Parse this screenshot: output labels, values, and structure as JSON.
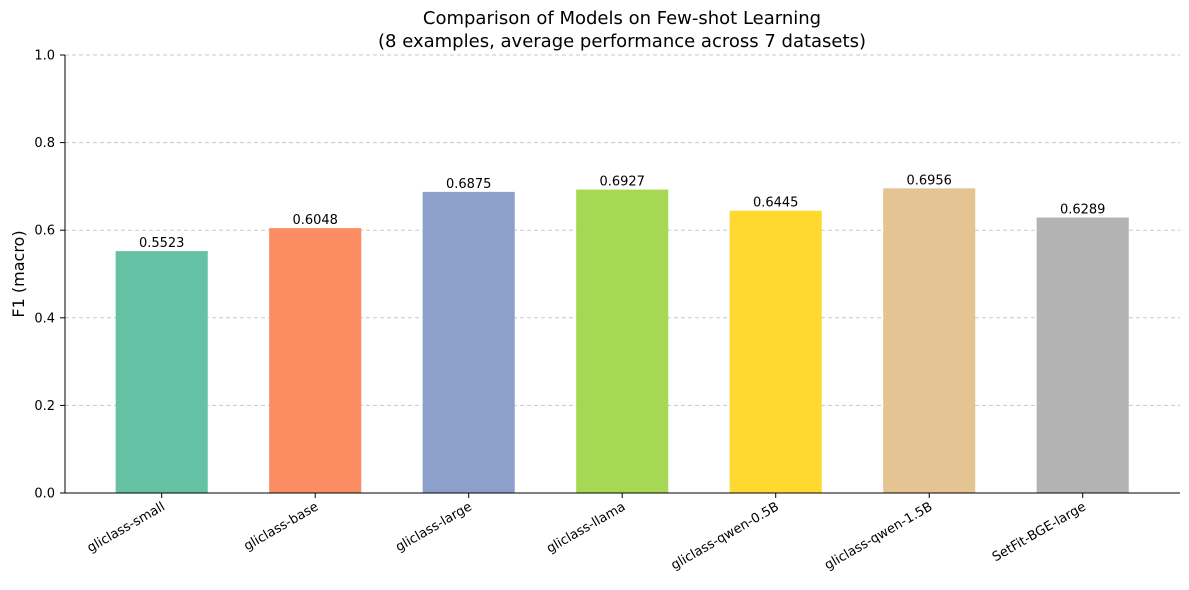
{
  "chart_data": {
    "type": "bar",
    "title": "Comparison of Models on Few-shot Learning",
    "subtitle": "(8 examples, average performance across 7 datasets)",
    "y_label": "F1 (macro)",
    "categories": [
      "gliclass-small",
      "gliclass-base",
      "gliclass-large",
      "gliclass-llama",
      "gliclass-qwen-0.5B",
      "gliclass-qwen-1.5B",
      "SetFit-BGE-large"
    ],
    "values": [
      0.5523,
      0.6048,
      0.6875,
      0.6927,
      0.6445,
      0.6956,
      0.6289
    ],
    "colors": [
      "#66c2a5",
      "#fc8d62",
      "#8da0cb",
      "#a6d854",
      "#ffd92f",
      "#e5c494",
      "#b3b3b3"
    ],
    "ylim": [
      0,
      1
    ],
    "yticks": [
      {
        "value": 0,
        "label": "0.0"
      },
      0.2,
      0.4,
      0.6,
      0.8,
      {
        "value": 1,
        "label": "1.0"
      }
    ],
    "grid": true
  }
}
